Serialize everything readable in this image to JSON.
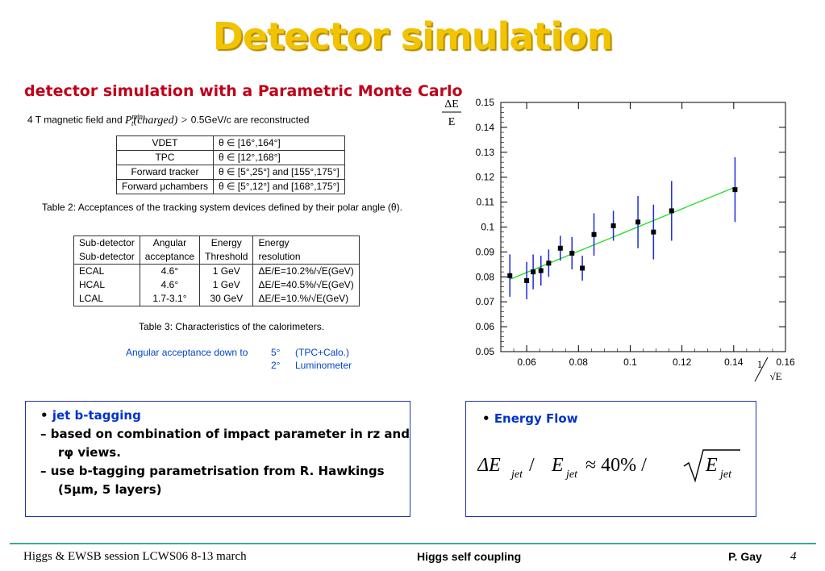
{
  "title": "Detector simulation",
  "subtitle": "detector simulation with a Parametric Monte Carlo",
  "intro": {
    "pre": "4 T magnetic field and ",
    "formula": "P",
    "sup": "min",
    "sub": "t",
    "formula_rest": "(charged) > ",
    "post": "0.5GeV/c are reconstructed"
  },
  "tracking_table": {
    "rows": [
      [
        "VDET",
        "θ ∈ [16°,164°]"
      ],
      [
        "TPC",
        "θ ∈ [12°,168°]"
      ],
      [
        "Forward tracker",
        "θ ∈ [5°,25°] and [155°,175°]"
      ],
      [
        "Forward μchambers",
        "θ ∈ [5°,12°] and [168°,175°]"
      ]
    ],
    "caption": "Table 2:  Acceptances of the tracking system devices defined by their polar angle (θ)."
  },
  "calo_table": {
    "header1": [
      "Sub-detector",
      "Angular",
      "Energy",
      "Energy"
    ],
    "header2": [
      "Sub-detector",
      "acceptance",
      "Threshold",
      "resolution"
    ],
    "rows": [
      [
        "ECAL",
        "4.6°",
        "1 GeV",
        "ΔE/E=10.2%/√E(GeV)"
      ],
      [
        "HCAL",
        "4.6°",
        "1 GeV",
        "ΔE/E=40.5%/√E(GeV)"
      ],
      [
        "LCAL",
        "1.7-3.1°",
        "30 GeV",
        "ΔE/E=10.%/√E(GeV)"
      ]
    ],
    "caption": "Table 3:  Characteristics of the calorimeters."
  },
  "acceptance": {
    "label": "Angular acceptance down to",
    "values": [
      {
        "angle": "5°",
        "desc": "(TPC+Calo.)"
      },
      {
        "angle": "2°",
        "desc": "Luminometer"
      }
    ]
  },
  "chart_data": {
    "type": "scatter",
    "ylabel": "ΔE/E",
    "xlabel": "1/√E",
    "xlim": [
      0.05,
      0.16
    ],
    "ylim": [
      0.05,
      0.15
    ],
    "xticks": [
      "0.06",
      "0.08",
      "0.1",
      "0.12",
      "0.14",
      "0.16"
    ],
    "yticks": [
      "0.05",
      "0.06",
      "0.07",
      "0.08",
      "0.09",
      "0.1",
      "0.11",
      "0.12",
      "0.13",
      "0.14",
      "0.15"
    ],
    "points": [
      {
        "x": 0.0535,
        "y": 0.0805,
        "err": 0.0085
      },
      {
        "x": 0.06,
        "y": 0.0785,
        "err": 0.0075
      },
      {
        "x": 0.0625,
        "y": 0.082,
        "err": 0.007
      },
      {
        "x": 0.0655,
        "y": 0.0825,
        "err": 0.006
      },
      {
        "x": 0.0685,
        "y": 0.0855,
        "err": 0.0055
      },
      {
        "x": 0.073,
        "y": 0.0915,
        "err": 0.005
      },
      {
        "x": 0.0775,
        "y": 0.0895,
        "err": 0.0065
      },
      {
        "x": 0.0815,
        "y": 0.0835,
        "err": 0.005
      },
      {
        "x": 0.086,
        "y": 0.097,
        "err": 0.0085
      },
      {
        "x": 0.0935,
        "y": 0.1005,
        "err": 0.006
      },
      {
        "x": 0.103,
        "y": 0.102,
        "err": 0.0105
      },
      {
        "x": 0.109,
        "y": 0.098,
        "err": 0.011
      },
      {
        "x": 0.116,
        "y": 0.1065,
        "err": 0.012
      },
      {
        "x": 0.1405,
        "y": 0.115,
        "err": 0.013
      }
    ],
    "fit": {
      "x": [
        0.0535,
        0.1405
      ],
      "y": [
        0.079,
        0.116
      ]
    },
    "colors": {
      "points": "#000000",
      "errors": "#1a2ad9",
      "fit": "#22dd22"
    }
  },
  "btag_box": {
    "head": "jet b-tagging",
    "items": [
      "based on combination of impact parameter in rz and rφ views.",
      "use b-tagging parametrisation from R. Hawkings (5μm, 5 layers)"
    ]
  },
  "eflow_box": {
    "head": "Energy Flow",
    "formula_delta": "ΔE",
    "formula_sub": "jet",
    "formula_slash": " / ",
    "formula_e": "E",
    "formula_approx": " ≈ 40% / ",
    "formula_sqrt_e": "E"
  },
  "footer": {
    "left": "Higgs & EWSB session LCWS06 8-13 march",
    "middle": "Higgs self coupling",
    "author": "P.  Gay",
    "page": "4"
  }
}
